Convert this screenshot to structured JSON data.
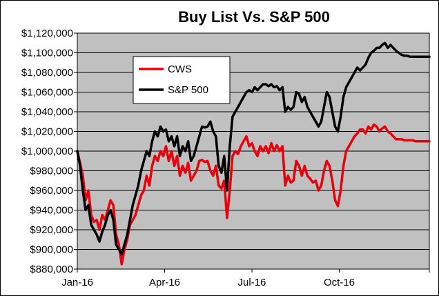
{
  "chart_data": {
    "type": "line",
    "title": "Buy List Vs. S&P 500",
    "xlabel": "",
    "ylabel": "",
    "ylim": [
      880000,
      1120000
    ],
    "y_ticks": [
      "$880,000",
      "$900,000",
      "$920,000",
      "$940,000",
      "$960,000",
      "$980,000",
      "$1,000,000",
      "$1,020,000",
      "$1,040,000",
      "$1,060,000",
      "$1,080,000",
      "$1,100,000",
      "$1,120,000"
    ],
    "x_ticks": [
      "Jan-16",
      "Apr-16",
      "Jul-16",
      "Oct-16"
    ],
    "grid": true,
    "legend_position": "top-left",
    "plot_background": "#c0c0c0",
    "series": [
      {
        "name": "CWS",
        "color": "#e8000b",
        "x": [
          0,
          2,
          4,
          6,
          8,
          10,
          12,
          14,
          16,
          18,
          20,
          22,
          24,
          26,
          28,
          30,
          32,
          34,
          36,
          38,
          40,
          42,
          44,
          46,
          48,
          50,
          52,
          54,
          56,
          58,
          60,
          62,
          64,
          66,
          68,
          70,
          72,
          74,
          76,
          78,
          80,
          82,
          84,
          86,
          88,
          90,
          92,
          94,
          96,
          98,
          100,
          102,
          104,
          106,
          108,
          110,
          112,
          114,
          116,
          118,
          120,
          122,
          124,
          126,
          128,
          130,
          132,
          134,
          136,
          138,
          140,
          142,
          144,
          146,
          148,
          150,
          152,
          154,
          156,
          158,
          160,
          162,
          164,
          166,
          168,
          170,
          172,
          174,
          176,
          178,
          180,
          182,
          184,
          186,
          188,
          190,
          192,
          194,
          196,
          198,
          200,
          202,
          204,
          206,
          208,
          210,
          212,
          214,
          216,
          218,
          220,
          222,
          224,
          226,
          228,
          230,
          232,
          234,
          236,
          238,
          240,
          242,
          244,
          246,
          248,
          250,
          252,
          254
        ],
        "values": [
          1000000,
          988000,
          975000,
          950000,
          960000,
          935000,
          928000,
          930000,
          920000,
          935000,
          930000,
          940000,
          950000,
          945000,
          915000,
          905000,
          885000,
          900000,
          910000,
          925000,
          930000,
          935000,
          945000,
          955000,
          960000,
          975000,
          965000,
          985000,
          995000,
          990000,
          1000000,
          995000,
          1005000,
          990000,
          1000000,
          985000,
          995000,
          975000,
          985000,
          978000,
          988000,
          970000,
          975000,
          980000,
          990000,
          991000,
          989000,
          990000,
          980000,
          975000,
          985000,
          965000,
          962000,
          970000,
          932000,
          960000,
          995000,
          1000000,
          997000,
          1005000,
          1010000,
          1015000,
          1005000,
          1008000,
          1000000,
          995000,
          1005000,
          1000000,
          1005000,
          998000,
          1008000,
          1000000,
          1006000,
          1000000,
          1005000,
          965000,
          975000,
          968000,
          970000,
          990000,
          985000,
          975000,
          985000,
          975000,
          972000,
          968000,
          970000,
          960000,
          965000,
          980000,
          990000,
          985000,
          970000,
          950000,
          944000,
          960000,
          985000,
          1000000,
          1005000,
          1010000,
          1015000,
          1018000,
          1022000,
          1022000,
          1018000,
          1025000,
          1022000,
          1027000,
          1025000,
          1020000,
          1023000,
          1025000,
          1020000,
          1018000,
          1015000,
          1012000,
          1012000,
          1012000,
          1011000,
          1011000,
          1011000,
          1011000,
          1010000,
          1010000,
          1010000,
          1010000,
          1010000,
          1010000
        ]
      },
      {
        "name": "S&P 500",
        "color": "#000000",
        "x": [
          0,
          2,
          4,
          6,
          8,
          10,
          12,
          14,
          16,
          18,
          20,
          22,
          24,
          26,
          28,
          30,
          32,
          34,
          36,
          38,
          40,
          42,
          44,
          46,
          48,
          50,
          52,
          54,
          56,
          58,
          60,
          62,
          64,
          66,
          68,
          70,
          72,
          74,
          76,
          78,
          80,
          82,
          84,
          86,
          88,
          90,
          92,
          94,
          96,
          98,
          100,
          102,
          104,
          106,
          108,
          110,
          112,
          114,
          116,
          118,
          120,
          122,
          124,
          126,
          128,
          130,
          132,
          134,
          136,
          138,
          140,
          142,
          144,
          146,
          148,
          150,
          152,
          154,
          156,
          158,
          160,
          162,
          164,
          166,
          168,
          170,
          172,
          174,
          176,
          178,
          180,
          182,
          184,
          186,
          188,
          190,
          192,
          194,
          196,
          198,
          200,
          202,
          204,
          206,
          208,
          210,
          212,
          214,
          216,
          218,
          220,
          222,
          224,
          226,
          228,
          230,
          232,
          234,
          236,
          238,
          240,
          242,
          244,
          246,
          248,
          250,
          252,
          254
        ],
        "values": [
          1000000,
          985000,
          960000,
          940000,
          945000,
          925000,
          920000,
          915000,
          908000,
          918000,
          925000,
          935000,
          940000,
          930000,
          905000,
          900000,
          895000,
          905000,
          915000,
          930000,
          945000,
          955000,
          965000,
          980000,
          990000,
          1000000,
          995000,
          1010000,
          1020000,
          1015000,
          1025000,
          1020000,
          1022000,
          1010000,
          1015000,
          1005000,
          1015000,
          995000,
          1005000,
          1000000,
          1010000,
          990000,
          995000,
          1005000,
          1015000,
          1025000,
          1024000,
          1025000,
          1030000,
          1020000,
          1015000,
          985000,
          978000,
          995000,
          960000,
          1005000,
          1035000,
          1040000,
          1045000,
          1050000,
          1055000,
          1060000,
          1062000,
          1060000,
          1065000,
          1062000,
          1065000,
          1068000,
          1068000,
          1066000,
          1068000,
          1065000,
          1066000,
          1062000,
          1065000,
          1040000,
          1045000,
          1042000,
          1045000,
          1060000,
          1058000,
          1050000,
          1055000,
          1045000,
          1040000,
          1035000,
          1030000,
          1025000,
          1030000,
          1045000,
          1060000,
          1055000,
          1040000,
          1025000,
          1020000,
          1035000,
          1055000,
          1065000,
          1070000,
          1075000,
          1080000,
          1085000,
          1082000,
          1085000,
          1088000,
          1095000,
          1100000,
          1102000,
          1105000,
          1105000,
          1108000,
          1110000,
          1105000,
          1108000,
          1105000,
          1102000,
          1100000,
          1098000,
          1097000,
          1097000,
          1096000,
          1096000,
          1096000,
          1096000,
          1096000,
          1096000,
          1096000,
          1096000
        ]
      }
    ]
  }
}
